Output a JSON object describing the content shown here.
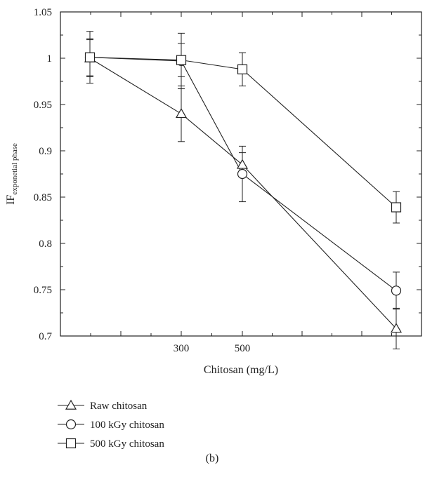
{
  "chart_data": {
    "type": "line",
    "title": "",
    "xlabel": "Chitosan (mg/L)",
    "ylabel": {
      "main": "IF",
      "subscript": "exponetial phase"
    },
    "x_tick_labels": [
      {
        "value": 300,
        "label": "300"
      },
      {
        "value": 500,
        "label": "500"
      }
    ],
    "ylim": [
      0.7,
      1.05
    ],
    "yticks": [
      0.7,
      0.75,
      0.8,
      0.85,
      0.9,
      0.95,
      1,
      1.05
    ],
    "ytick_labels": [
      "0.7",
      "0.75",
      "0.8",
      "0.85",
      "0.9",
      "0.95",
      "1",
      "1.05"
    ],
    "grid": false,
    "legend_position": "below",
    "x_positions": [
      1,
      2,
      3,
      4
    ],
    "series": [
      {
        "name": "Raw chitosan",
        "marker": "triangle",
        "points": [
          {
            "x": 1,
            "y": 1.0,
            "err": 0.02
          },
          {
            "x": 2,
            "y": 0.94,
            "err": 0.03
          },
          {
            "x": 3,
            "y": 0.885,
            "err": 0.013
          },
          {
            "x": 4,
            "y": 0.708,
            "err": 0.022
          }
        ]
      },
      {
        "name": "100 kGy chitosan",
        "marker": "circle",
        "points": [
          {
            "x": 1,
            "y": 1.001,
            "err": 0.02
          },
          {
            "x": 2,
            "y": 0.997,
            "err": 0.03
          },
          {
            "x": 3,
            "y": 0.875,
            "err": 0.03
          },
          {
            "x": 4,
            "y": 0.749,
            "err": 0.02
          }
        ]
      },
      {
        "name": "500 kGy chitosan",
        "marker": "square",
        "points": [
          {
            "x": 1,
            "y": 1.001,
            "err": 0.028
          },
          {
            "x": 2,
            "y": 0.998,
            "err": 0.018
          },
          {
            "x": 3,
            "y": 0.988,
            "err": 0.018
          },
          {
            "x": 4,
            "y": 0.839,
            "err": 0.017
          }
        ]
      }
    ]
  },
  "panel_label": "(b)"
}
